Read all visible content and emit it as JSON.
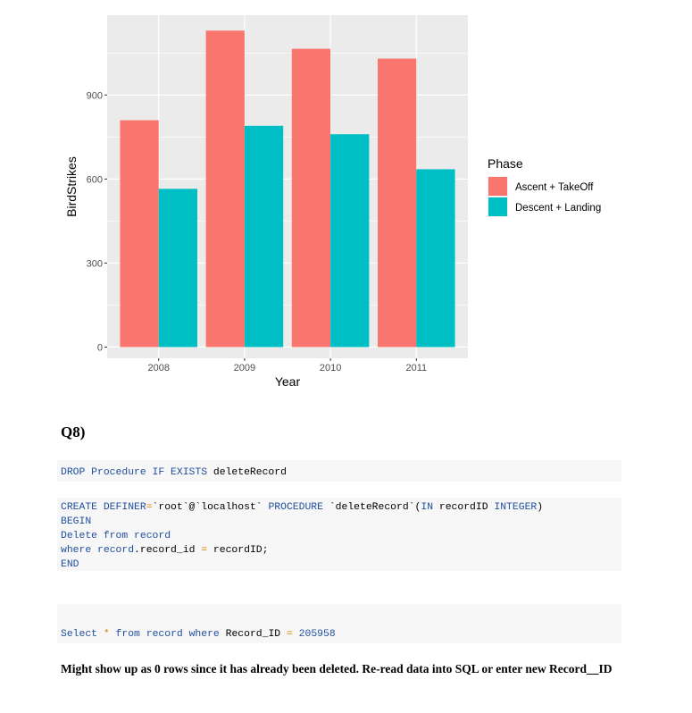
{
  "chart_data": {
    "type": "bar",
    "categories": [
      "2008",
      "2009",
      "2010",
      "2011"
    ],
    "series": [
      {
        "name": "Ascent + TakeOff",
        "values": [
          810,
          1130,
          1065,
          1030
        ],
        "color": "#f8766d"
      },
      {
        "name": "Descent + Landing",
        "values": [
          565,
          790,
          760,
          635
        ],
        "color": "#00bfc4"
      }
    ],
    "xlabel": "Year",
    "ylabel": "BirdStrikes",
    "ylim": [
      -40,
      1185
    ],
    "yticks": [
      0,
      300,
      600,
      900
    ],
    "legend_title": "Phase",
    "legend_position": "right",
    "grid": true
  },
  "question": {
    "title": "Q8)"
  },
  "code_blocks": {
    "drop": {
      "kw1": "DROP Procedure IF EXISTS",
      "name": " deleteRecord"
    },
    "create": {
      "l1_kw": "CREATE DEFINER",
      "l1_eq": "=",
      "l1_def": "`root`@`localhost`",
      "l1_kw2": "PROCEDURE",
      "l1_name": "`deleteRecord`",
      "l1_open": "(",
      "l1_in": "IN",
      "l1_param": " recordID ",
      "l1_type": "INTEGER",
      "l1_close": ")",
      "l2": "BEGIN",
      "l3_kw": "Delete from",
      "l3_tbl": "record",
      "l4_kw": "where",
      "l4_tbl": "record",
      "l4_dot": ".record_id ",
      "l4_eq": "=",
      "l4_rest": " recordID;",
      "l5": "END"
    },
    "select": {
      "kw1": "Select",
      "star": "*",
      "kw2": "from",
      "tbl": "record",
      "kw3": "where",
      "col": " Record_ID ",
      "eq": "=",
      "val": "205958"
    }
  },
  "note": "Might show up as 0 rows since it has already been deleted. Re-read data into SQL or enter new Record__ID"
}
